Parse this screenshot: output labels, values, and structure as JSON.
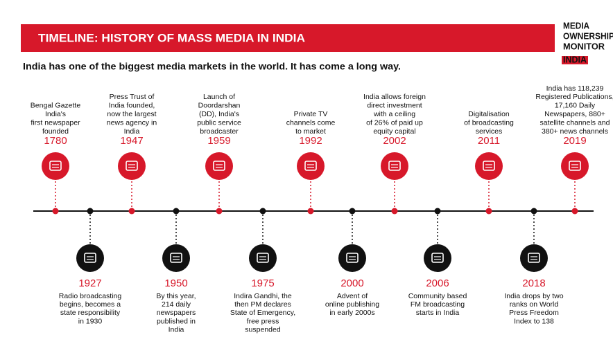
{
  "header": {
    "title": "TIMELINE: HISTORY OF MASS MEDIA IN INDIA",
    "subtitle": "India has one of the biggest media markets in the world. It has come a long way.",
    "logo": [
      "MEDIA",
      "OWNERSHIP",
      "MONITOR",
      "INDIA"
    ]
  },
  "timeline": {
    "above": [
      {
        "year": "1780",
        "text": [
          "Bengal Gazette",
          "India's",
          "first newspaper",
          "founded"
        ]
      },
      {
        "year": "1947",
        "text": [
          "Press Trust of",
          "India founded,",
          "now the largest",
          "news agency in",
          "India"
        ]
      },
      {
        "year": "1959",
        "text": [
          "Launch of",
          "Doordarshan",
          "(DD), India's",
          "public service",
          "broadcaster"
        ]
      },
      {
        "year": "1992",
        "text": [
          "Private TV",
          "channels come",
          "to market"
        ]
      },
      {
        "year": "2002",
        "text": [
          "India allows foreign",
          "direct investment",
          "with a ceiling",
          "of 26% of paid up",
          "equity capital"
        ]
      },
      {
        "year": "2011",
        "text": [
          "Digitalisation",
          "of broadcasting",
          "services"
        ]
      },
      {
        "year": "2019",
        "text": [
          "India has 118,239",
          "Registered Publications,",
          "17,160 Daily",
          "Newspapers, 880+",
          "satellite channels and",
          "380+ news channels"
        ]
      }
    ],
    "below": [
      {
        "year": "1927",
        "text": [
          "Radio broadcasting",
          "begins, becomes a",
          "state responsibility",
          "in 1930"
        ]
      },
      {
        "year": "1950",
        "text": [
          "By this year,",
          "214 daily",
          "newspapers",
          "published in",
          "India"
        ]
      },
      {
        "year": "1975",
        "text": [
          "Indira Gandhi, the",
          "then PM declares",
          "State of Emergency,",
          "free press",
          "suspended"
        ]
      },
      {
        "year": "2000",
        "text": [
          "Advent of",
          "online publishing",
          "in early 2000s"
        ]
      },
      {
        "year": "2006",
        "text": [
          "Community based",
          "FM broadcasting",
          "starts in India"
        ]
      },
      {
        "year": "2018",
        "text": [
          "India drops by two",
          "ranks on World",
          "Press Freedom",
          "Index to 138"
        ]
      }
    ]
  }
}
